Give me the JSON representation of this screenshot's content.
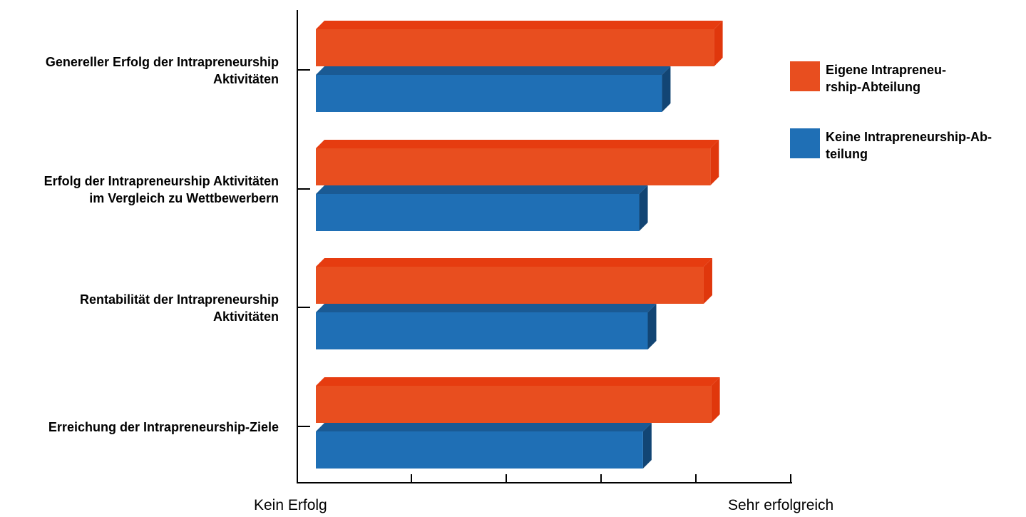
{
  "chart_data": {
    "type": "bar",
    "orientation": "horizontal",
    "categories": [
      "Genereller Erfolg der Intrapreneurship\nAktivitäten",
      "Erfolg der Intrapreneurship Aktivitäten\nim Vergleich zu Wettbewerbern",
      "Rentabilität der Intrapreneurship\nAktivitäten",
      "Erreichung der Intrapreneurship-Ziele"
    ],
    "series": [
      {
        "name": "Eigene Intrapreneu-\nrship-Abteilung",
        "values": [
          4.2,
          4.16,
          4.09,
          4.17
        ]
      },
      {
        "name": "Keine Intrapreneurship-Ab-\nteilung",
        "values": [
          3.65,
          3.41,
          3.5,
          3.45
        ]
      }
    ],
    "x_start_label": "Kein Erfolg",
    "x_end_label": "Sehr erfolgreich",
    "xlim": [
      0,
      5
    ],
    "x_ticks": [
      0,
      1,
      2,
      3,
      4,
      5
    ],
    "grid": false,
    "legend_position": "right",
    "colors": {
      "series_front": [
        "#e84e1f",
        "#1f6fb5"
      ],
      "series_top": [
        "#e63c10",
        "#1a5a94"
      ],
      "series_side": [
        "#e0370c",
        "#124574"
      ],
      "axis": "#000000"
    }
  }
}
